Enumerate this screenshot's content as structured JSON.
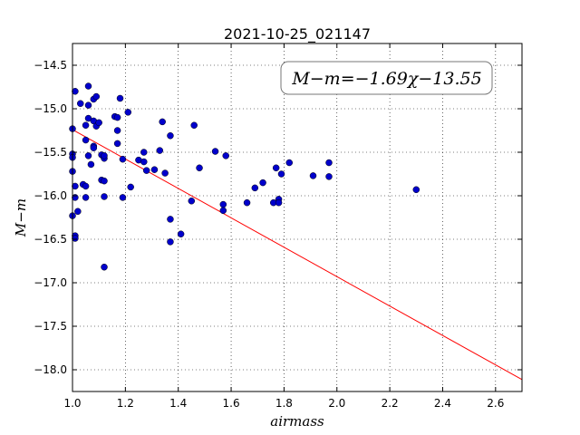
{
  "chart_data": {
    "type": "scatter",
    "title": "2021-10-25_021147",
    "xlabel": "airmass",
    "ylabel": "M−m",
    "xlim": [
      1.0,
      2.7
    ],
    "ylim": [
      -18.25,
      -14.25
    ],
    "xticks": [
      "1.0",
      "1.2",
      "1.4",
      "1.6",
      "1.8",
      "2.0",
      "2.2",
      "2.4",
      "2.6"
    ],
    "yticks": [
      "−14.5",
      "−15.0",
      "−15.5",
      "−16.0",
      "−16.5",
      "−17.0",
      "−17.5",
      "−18.0"
    ],
    "grid": true,
    "annotation": "M−m=−1.69χ−13.55",
    "fit": {
      "slope": -1.69,
      "intercept": -13.55,
      "color": "#ff0000",
      "label": "M−m=−1.69χ−13.55"
    },
    "point_color": "#0000cc",
    "points": [
      {
        "x": 1.0,
        "y": -15.23
      },
      {
        "x": 1.0,
        "y": -15.52
      },
      {
        "x": 1.0,
        "y": -15.56
      },
      {
        "x": 1.0,
        "y": -15.72
      },
      {
        "x": 1.0,
        "y": -16.23
      },
      {
        "x": 1.01,
        "y": -14.8
      },
      {
        "x": 1.01,
        "y": -15.89
      },
      {
        "x": 1.01,
        "y": -16.02
      },
      {
        "x": 1.01,
        "y": -16.46
      },
      {
        "x": 1.01,
        "y": -16.49
      },
      {
        "x": 1.02,
        "y": -16.18
      },
      {
        "x": 1.03,
        "y": -14.94
      },
      {
        "x": 1.04,
        "y": -15.87
      },
      {
        "x": 1.05,
        "y": -15.19
      },
      {
        "x": 1.05,
        "y": -15.36
      },
      {
        "x": 1.05,
        "y": -15.89
      },
      {
        "x": 1.05,
        "y": -16.02
      },
      {
        "x": 1.06,
        "y": -14.74
      },
      {
        "x": 1.06,
        "y": -14.96
      },
      {
        "x": 1.06,
        "y": -15.11
      },
      {
        "x": 1.06,
        "y": -15.54
      },
      {
        "x": 1.07,
        "y": -15.64
      },
      {
        "x": 1.08,
        "y": -15.43
      },
      {
        "x": 1.08,
        "y": -15.45
      },
      {
        "x": 1.08,
        "y": -15.14
      },
      {
        "x": 1.08,
        "y": -14.89
      },
      {
        "x": 1.09,
        "y": -14.86
      },
      {
        "x": 1.09,
        "y": -15.2
      },
      {
        "x": 1.1,
        "y": -15.16
      },
      {
        "x": 1.11,
        "y": -15.53
      },
      {
        "x": 1.11,
        "y": -15.82
      },
      {
        "x": 1.12,
        "y": -15.57
      },
      {
        "x": 1.12,
        "y": -15.54
      },
      {
        "x": 1.12,
        "y": -15.83
      },
      {
        "x": 1.12,
        "y": -16.01
      },
      {
        "x": 1.12,
        "y": -16.82
      },
      {
        "x": 1.16,
        "y": -15.09
      },
      {
        "x": 1.17,
        "y": -15.1
      },
      {
        "x": 1.17,
        "y": -15.25
      },
      {
        "x": 1.17,
        "y": -15.4
      },
      {
        "x": 1.18,
        "y": -14.88
      },
      {
        "x": 1.19,
        "y": -15.58
      },
      {
        "x": 1.19,
        "y": -16.02
      },
      {
        "x": 1.21,
        "y": -15.04
      },
      {
        "x": 1.22,
        "y": -15.9
      },
      {
        "x": 1.25,
        "y": -15.59
      },
      {
        "x": 1.27,
        "y": -15.5
      },
      {
        "x": 1.27,
        "y": -15.61
      },
      {
        "x": 1.28,
        "y": -15.71
      },
      {
        "x": 1.31,
        "y": -15.7
      },
      {
        "x": 1.33,
        "y": -15.48
      },
      {
        "x": 1.34,
        "y": -15.15
      },
      {
        "x": 1.35,
        "y": -15.74
      },
      {
        "x": 1.37,
        "y": -15.31
      },
      {
        "x": 1.37,
        "y": -16.27
      },
      {
        "x": 1.37,
        "y": -16.53
      },
      {
        "x": 1.41,
        "y": -16.44
      },
      {
        "x": 1.45,
        "y": -16.06
      },
      {
        "x": 1.46,
        "y": -15.19
      },
      {
        "x": 1.48,
        "y": -15.68
      },
      {
        "x": 1.54,
        "y": -15.49
      },
      {
        "x": 1.57,
        "y": -16.1
      },
      {
        "x": 1.57,
        "y": -16.17
      },
      {
        "x": 1.58,
        "y": -15.54
      },
      {
        "x": 1.66,
        "y": -16.08
      },
      {
        "x": 1.69,
        "y": -15.91
      },
      {
        "x": 1.72,
        "y": -15.85
      },
      {
        "x": 1.76,
        "y": -16.08
      },
      {
        "x": 1.77,
        "y": -15.68
      },
      {
        "x": 1.78,
        "y": -16.04
      },
      {
        "x": 1.78,
        "y": -16.08
      },
      {
        "x": 1.79,
        "y": -15.75
      },
      {
        "x": 1.82,
        "y": -15.62
      },
      {
        "x": 1.91,
        "y": -15.77
      },
      {
        "x": 1.97,
        "y": -15.62
      },
      {
        "x": 1.97,
        "y": -15.78
      },
      {
        "x": 2.3,
        "y": -15.93
      }
    ]
  }
}
